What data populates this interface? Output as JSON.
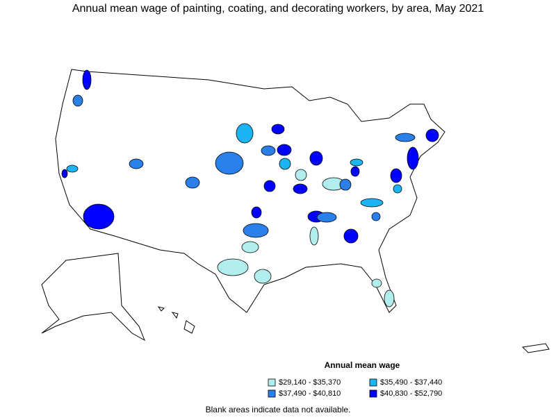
{
  "title": "Annual mean wage of painting, coating, and decorating workers, by area, May 2021",
  "legend": {
    "title": "Annual mean wage",
    "items": [
      {
        "label": "$29,140 - $35,370",
        "color": "#b2eeee"
      },
      {
        "label": "$35,490 - $37,440",
        "color": "#1cb4f2"
      },
      {
        "label": "$37,490 - $40,810",
        "color": "#2a7fe8"
      },
      {
        "label": "$40,830 - $52,790",
        "color": "#0000ff"
      }
    ]
  },
  "note": "Blank areas indicate data not available."
}
